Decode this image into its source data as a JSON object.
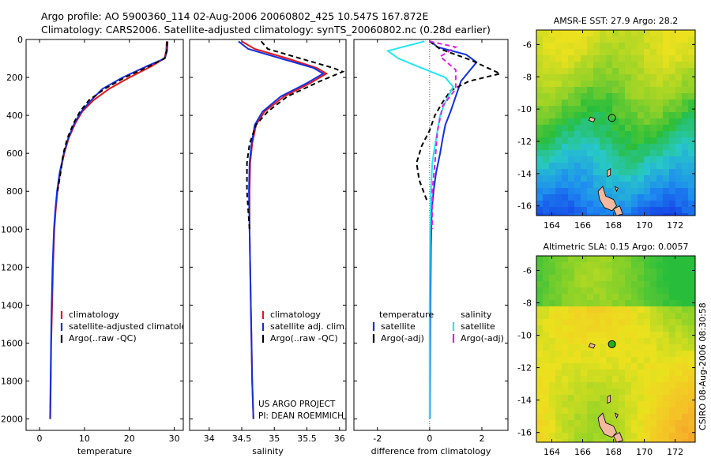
{
  "header": {
    "line1": "Argo profile: AO 5900360_114 02-Aug-2006 20060802_425 10.547S 167.872E",
    "line2": "Climatology: CARS2006. Satellite-adjusted climatology: synTS_20060802.nc (0.28d earlier)"
  },
  "footer": {
    "project": "US ARGO PROJECT",
    "pi": "PI: DEAN ROEMMICH",
    "stamp": "CSIRO 08-Aug-2006 08:30:58"
  },
  "colors": {
    "clim": "#e8141b",
    "sat": "#1030e0",
    "argo": "#000000",
    "sat_sal": "#20e8f0",
    "argo_sal": "#e020e0"
  },
  "chart_data": [
    {
      "type": "line",
      "id": "temperature",
      "xlabel": "temperature",
      "ylabel": "",
      "xlim": [
        -3,
        32
      ],
      "ylim": [
        2060,
        0
      ],
      "xticks": [
        "0",
        "10",
        "20",
        "30"
      ],
      "yticks": [
        "0",
        "200",
        "400",
        "600",
        "800",
        "1000",
        "1200",
        "1400",
        "1600",
        "1800",
        "2000"
      ],
      "legend": [
        "climatology",
        "satellite-adjusted climatology",
        "Argo(..raw -QC)"
      ],
      "series": [
        {
          "name": "climatology",
          "style": "clim",
          "x": [
            28.3,
            28.2,
            27.8,
            25,
            20,
            15.5,
            12,
            9.5,
            8,
            6.5,
            5.5,
            4.6,
            4,
            3.6,
            3.3,
            3,
            2.8,
            2.6,
            2.5,
            2.4
          ],
          "y": [
            10,
            60,
            100,
            140,
            200,
            260,
            320,
            380,
            440,
            520,
            600,
            700,
            800,
            900,
            1000,
            1200,
            1400,
            1600,
            1800,
            2000
          ]
        },
        {
          "name": "satellite-adjusted climatology",
          "style": "sat",
          "x": [
            28.5,
            28.4,
            27.9,
            24,
            18.5,
            14,
            11.5,
            9.3,
            7.8,
            6.4,
            5.4,
            4.5,
            3.9,
            3.5,
            3.2,
            2.9,
            2.7,
            2.55,
            2.45,
            2.35
          ],
          "y": [
            10,
            60,
            100,
            140,
            200,
            260,
            320,
            380,
            440,
            520,
            600,
            700,
            800,
            900,
            1000,
            1200,
            1400,
            1600,
            1800,
            2000
          ]
        },
        {
          "name": "Argo(..raw -QC)",
          "style": "argo",
          "x": [
            28.4,
            28.3,
            27.8,
            24.5,
            19,
            14.5,
            11,
            9,
            7.6,
            6.2,
            5.3,
            4.7,
            4
          ],
          "y": [
            10,
            60,
            100,
            140,
            200,
            260,
            320,
            380,
            440,
            520,
            600,
            700,
            800
          ]
        }
      ]
    },
    {
      "type": "line",
      "id": "salinity",
      "xlabel": "salinity",
      "xlim": [
        33.7,
        36.1
      ],
      "ylim": [
        2060,
        0
      ],
      "xticks": [
        "34",
        "34.5",
        "35",
        "35.5",
        "36"
      ],
      "legend": [
        "climatology",
        "satellite adj. clim.",
        "Argo(..raw -QC)"
      ],
      "series": [
        {
          "name": "climatology",
          "style": "clim",
          "x": [
            34.5,
            34.7,
            35.2,
            35.65,
            35.8,
            35.55,
            35.15,
            34.85,
            34.72,
            34.66,
            34.63,
            34.62,
            34.62,
            34.63,
            34.64,
            34.65,
            34.66,
            34.67,
            34.68
          ],
          "y": [
            10,
            50,
            100,
            150,
            180,
            230,
            300,
            380,
            450,
            550,
            650,
            800,
            1000,
            1200,
            1400,
            1600,
            1800,
            1900,
            2000
          ]
        },
        {
          "name": "satellite adj. clim.",
          "style": "sat",
          "x": [
            34.45,
            34.6,
            35.1,
            35.6,
            35.75,
            35.5,
            35.1,
            34.82,
            34.7,
            34.65,
            34.62,
            34.61,
            34.62,
            34.63,
            34.64,
            34.65,
            34.66,
            34.67,
            34.68
          ],
          "y": [
            10,
            50,
            100,
            150,
            180,
            230,
            300,
            380,
            450,
            550,
            650,
            800,
            1000,
            1200,
            1400,
            1600,
            1800,
            1900,
            2000
          ]
        },
        {
          "name": "Argo(..raw -QC)",
          "style": "argo",
          "x": [
            34.8,
            34.9,
            35.4,
            35.9,
            36.05,
            35.7,
            35.2,
            34.9,
            34.72,
            34.62,
            34.58,
            34.58,
            34.6,
            34.62
          ],
          "y": [
            10,
            50,
            100,
            150,
            170,
            220,
            300,
            380,
            450,
            550,
            650,
            800,
            900,
            1000
          ]
        }
      ]
    },
    {
      "type": "line",
      "id": "difference",
      "xlabel": "difference from climatology",
      "xlim": [
        -2.9,
        3.0
      ],
      "ylim": [
        2060,
        0
      ],
      "xticks": [
        "-2",
        "0",
        "2"
      ],
      "legend_headers": [
        "temperature",
        "salinity"
      ],
      "legend": [
        "satellite",
        "Argo(-adj)",
        "satellite",
        "Argo(-adj)"
      ],
      "series": [
        {
          "name": "temperature satellite",
          "style": "sat",
          "x": [
            0.05,
            0.3,
            1.4,
            1.8,
            1.5,
            1.2,
            1.0,
            0.8,
            0.6,
            0.5,
            0.4,
            0.25,
            0.15,
            0.08,
            0.05,
            0.03,
            0.02,
            0.01
          ],
          "y": [
            10,
            40,
            80,
            120,
            170,
            220,
            300,
            380,
            450,
            520,
            600,
            700,
            800,
            900,
            1100,
            1400,
            1700,
            2000
          ]
        },
        {
          "name": "temperature Argo(-adj)",
          "style": "argo",
          "x": [
            0,
            0.4,
            1.6,
            2.7,
            1.5,
            0.8,
            0.5,
            0.2,
            0,
            -0.3,
            -0.5,
            -0.4,
            -0.1
          ],
          "y": [
            10,
            50,
            110,
            180,
            220,
            270,
            330,
            400,
            480,
            560,
            650,
            740,
            850
          ]
        },
        {
          "name": "salinity satellite",
          "style": "sat_sal",
          "x": [
            -0.2,
            -1.6,
            -1.2,
            -0.5,
            0.6,
            0.9,
            0.6,
            0.4,
            0.3,
            0.2,
            0.1,
            0.05,
            0.02,
            0,
            0
          ],
          "y": [
            10,
            60,
            100,
            140,
            200,
            250,
            330,
            400,
            480,
            560,
            650,
            800,
            1000,
            1400,
            2000
          ]
        },
        {
          "name": "salinity Argo(-adj)",
          "style": "argo_sal",
          "x": [
            0,
            1.0,
            0.4,
            1.0,
            1.0,
            0.5,
            0.3,
            0.2,
            0.1,
            0.1
          ],
          "y": [
            10,
            40,
            90,
            160,
            260,
            350,
            480,
            650,
            800,
            1000
          ]
        }
      ]
    },
    {
      "type": "heatmap",
      "id": "sst-map",
      "title": "AMSR-E SST: 27.9 Argo: 28.2",
      "xlim": [
        163,
        173.3
      ],
      "ylim": [
        -16.6,
        -5.1
      ],
      "xticks": [
        "164",
        "166",
        "168",
        "170",
        "172"
      ],
      "yticks": [
        "-6",
        "-8",
        "-10",
        "-12",
        "-14",
        "-16"
      ],
      "marker": {
        "lon": 167.9,
        "lat": -10.55,
        "filled": false
      }
    },
    {
      "type": "heatmap",
      "id": "sla-map",
      "title": "Altimetric SLA: 0.15 Argo: 0.0057",
      "xlim": [
        163,
        173.3
      ],
      "ylim": [
        -16.6,
        -5.1
      ],
      "xticks": [
        "164",
        "166",
        "168",
        "170",
        "172"
      ],
      "yticks": [
        "-6",
        "-8",
        "-10",
        "-12",
        "-14",
        "-16"
      ],
      "marker": {
        "lon": 167.9,
        "lat": -10.55,
        "filled": true
      }
    }
  ]
}
